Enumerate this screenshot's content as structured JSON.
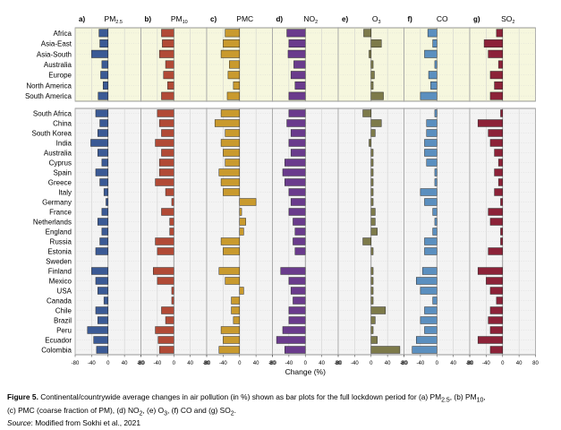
{
  "chart_data": {
    "type": "bar",
    "orientation": "horizontal",
    "panels": [
      {
        "letter": "a)",
        "pollutant": "PM",
        "subscript": "2.5"
      },
      {
        "letter": "b)",
        "pollutant": "PM",
        "subscript": "10"
      },
      {
        "letter": "c)",
        "pollutant": "PMC",
        "subscript": ""
      },
      {
        "letter": "d)",
        "pollutant": "NO",
        "subscript": "2"
      },
      {
        "letter": "e)",
        "pollutant": "O",
        "subscript": "3"
      },
      {
        "letter": "f)",
        "pollutant": "CO",
        "subscript": ""
      },
      {
        "letter": "g)",
        "pollutant": "SO",
        "subscript": "2"
      }
    ],
    "xlim": [
      -80,
      80
    ],
    "x_ticks": [
      "-80",
      "-40",
      "0",
      "40",
      "80"
    ],
    "xlabel": "Change (%)",
    "colors": {
      "pm25": "#3b5a95",
      "pm10": "#b14a36",
      "pmc": "#c99a2e",
      "no2": "#6a3b8c",
      "o3": "#7d7a4a",
      "co": "#5b8fbf",
      "so2": "#8c2238",
      "regions_bg": "#f6f7de",
      "countries_bg": "#f3f3f3"
    },
    "regions": {
      "categories": [
        "Africa",
        "Asia-East",
        "Asia-South",
        "Australia",
        "Europe",
        "North America",
        "South America"
      ],
      "series": [
        {
          "name": "PM2.5",
          "values": [
            -22,
            -20,
            -40,
            -15,
            -18,
            -12,
            -24
          ]
        },
        {
          "name": "PM10",
          "values": [
            -30,
            -28,
            -35,
            -20,
            -25,
            -15,
            -30
          ]
        },
        {
          "name": "PMC",
          "values": [
            -35,
            -40,
            -45,
            -25,
            -28,
            -15,
            -30
          ]
        },
        {
          "name": "NO2",
          "values": [
            -45,
            -40,
            -42,
            -28,
            -35,
            -25,
            -40
          ]
        },
        {
          "name": "O3",
          "values": [
            -18,
            25,
            -5,
            5,
            8,
            5,
            30
          ]
        },
        {
          "name": "CO",
          "values": [
            -22,
            -10,
            -30,
            -5,
            -20,
            -15,
            -40
          ]
        },
        {
          "name": "SO2",
          "values": [
            -15,
            -45,
            -35,
            -10,
            -30,
            -20,
            -30
          ]
        }
      ]
    },
    "countries": {
      "categories": [
        "South Africa",
        "China",
        "South Korea",
        "India",
        "Australia",
        "Cyprus",
        "Spain",
        "Greece",
        "Italy",
        "Germany",
        "France",
        "Netherlands",
        "England",
        "Russia",
        "Estonia",
        "Sweden",
        "Finland",
        "Mexico",
        "USA",
        "Canada",
        "Chile",
        "Brazil",
        "Peru",
        "Ecuador",
        "Colombia"
      ],
      "series": [
        {
          "name": "PM2.5",
          "values": [
            -30,
            -20,
            -25,
            -42,
            -25,
            -15,
            -30,
            -20,
            -10,
            -5,
            -15,
            -25,
            -15,
            -20,
            -30,
            0,
            -40,
            -30,
            -25,
            -10,
            -30,
            -25,
            -50,
            -35,
            -28
          ]
        },
        {
          "name": "PM10",
          "values": [
            -40,
            -35,
            -30,
            -45,
            -30,
            -35,
            -35,
            -45,
            -20,
            -5,
            -30,
            -10,
            -10,
            -45,
            -40,
            0,
            -50,
            -40,
            -5,
            -5,
            -30,
            -20,
            -45,
            -38,
            -35
          ]
        },
        {
          "name": "PMC",
          "values": [
            -45,
            -60,
            -35,
            -45,
            -40,
            -35,
            -50,
            -45,
            -40,
            40,
            5,
            15,
            10,
            -45,
            -40,
            0,
            -50,
            -35,
            10,
            -20,
            -20,
            -15,
            -45,
            -40,
            -50
          ]
        },
        {
          "name": "NO2",
          "values": [
            -40,
            -45,
            -35,
            -40,
            -35,
            -50,
            -55,
            -50,
            -40,
            -35,
            -40,
            -30,
            -25,
            -30,
            -25,
            0,
            -60,
            -40,
            -35,
            -30,
            -40,
            -40,
            -55,
            -70,
            -50
          ]
        },
        {
          "name": "O3",
          "values": [
            -20,
            25,
            10,
            -5,
            5,
            5,
            5,
            5,
            5,
            5,
            10,
            10,
            15,
            -20,
            5,
            0,
            5,
            5,
            5,
            5,
            35,
            10,
            5,
            15,
            70
          ]
        },
        {
          "name": "CO",
          "values": [
            -5,
            -25,
            -25,
            -30,
            -30,
            -25,
            -5,
            -5,
            -40,
            -30,
            -10,
            -5,
            -10,
            -30,
            -30,
            0,
            -35,
            -50,
            -40,
            -10,
            -30,
            -40,
            -30,
            -50,
            -60
          ]
        },
        {
          "name": "SO2",
          "values": [
            -5,
            -60,
            -35,
            -30,
            -20,
            -10,
            -20,
            -10,
            -20,
            -5,
            -35,
            -30,
            -5,
            -5,
            -35,
            0,
            -60,
            -40,
            -30,
            -15,
            -30,
            -35,
            -30,
            -60,
            -30
          ]
        }
      ]
    }
  },
  "caption": {
    "figure_label": "Figure 5.",
    "line1_a": " Continental/countrywide average changes in air pollution (in %) shown as bar plots for the full lockdown period for (a) PM",
    "line1_sub1": "2.5",
    "line1_b": ", (b) PM",
    "line1_sub2": "10",
    "line1_c": ",",
    "line2_a": "(c) PMC (coarse fraction of PM), (d) NO",
    "line2_sub1": "2",
    "line2_b": ", (e) O",
    "line2_sub2": "3",
    "line2_c": ", (f) CO and (g) SO",
    "line2_sub3": "2",
    "line2_d": ".",
    "source_label": "Source",
    "source_text": ": Modified from Sokhi et al., 2021"
  }
}
